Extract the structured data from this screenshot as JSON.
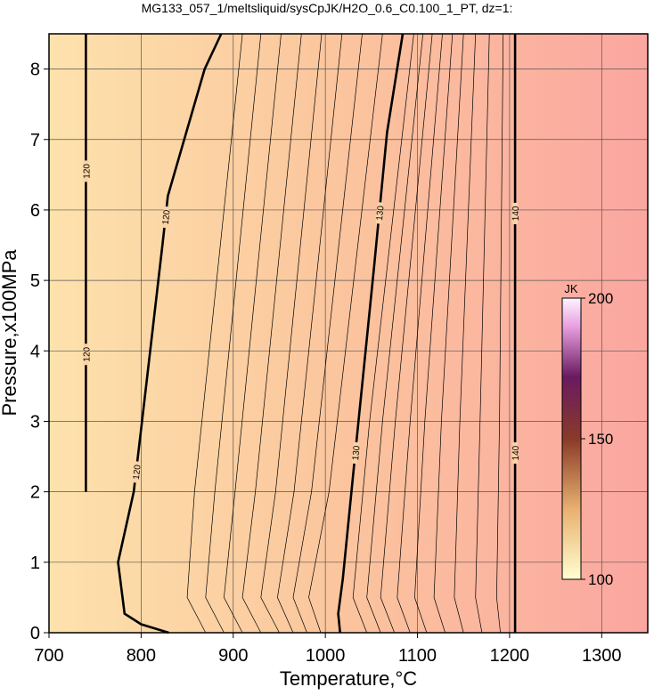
{
  "chart_data": {
    "type": "contour",
    "title": "MG133_057_1/meltsliquid/sysCpJK/H2O_0.6_C0.100_1_PT, dz=1:",
    "xlabel": "Temperature,°C",
    "ylabel": "Pressure,x100MPa",
    "xlim": [
      700,
      1350
    ],
    "ylim": [
      0,
      8.5
    ],
    "xticks": [
      700,
      800,
      900,
      1000,
      1100,
      1200,
      1300
    ],
    "yticks": [
      0,
      1,
      2,
      3,
      4,
      5,
      6,
      7,
      8
    ],
    "grid": true,
    "colorbar": {
      "label": "JK",
      "lim": [
        100,
        200
      ],
      "ticks": [
        100,
        150,
        200
      ]
    },
    "contours": [
      {
        "level": 120,
        "labeled": true,
        "x": [
          830,
          800,
          782,
          775,
          792,
          801,
          823,
          829,
          869,
          887
        ],
        "y": [
          0,
          0.12,
          0.27,
          1,
          2,
          3,
          5.49,
          6.2,
          8,
          8.5
        ]
      },
      {
        "level": 120,
        "labeled": true,
        "x": [
          740,
          740
        ],
        "y": [
          2,
          8.5
        ]
      },
      {
        "level": 130,
        "labeled": true,
        "x": [
          1016,
          1014,
          1019,
          1032,
          1053,
          1067,
          1084
        ],
        "y": [
          0,
          0.27,
          0.77,
          2.48,
          5.2,
          7.1,
          8.5
        ]
      },
      {
        "level": 140,
        "labeled": true,
        "x": [
          1206,
          1206
        ],
        "y": [
          0,
          8.5
        ]
      },
      {
        "level": 121,
        "labeled": false,
        "x": [
          870,
          850,
          858,
          910
        ],
        "y": [
          0,
          0.5,
          2,
          8.5
        ]
      },
      {
        "level": 122,
        "labeled": false,
        "x": [
          890,
          870,
          880,
          930
        ],
        "y": [
          0,
          0.5,
          2,
          8.5
        ]
      },
      {
        "level": 123,
        "labeled": false,
        "x": [
          910,
          890,
          902,
          952
        ],
        "y": [
          0,
          0.5,
          2,
          8.5
        ]
      },
      {
        "level": 124,
        "labeled": false,
        "x": [
          930,
          910,
          924,
          974
        ],
        "y": [
          0,
          0.5,
          2,
          8.5
        ]
      },
      {
        "level": 125,
        "labeled": false,
        "x": [
          950,
          930,
          946,
          996
        ],
        "y": [
          0,
          0.5,
          2,
          8.5
        ]
      },
      {
        "level": 126,
        "labeled": false,
        "x": [
          965,
          948,
          966,
          1018
        ],
        "y": [
          0,
          0.5,
          2,
          8.5
        ]
      },
      {
        "level": 127,
        "labeled": false,
        "x": [
          980,
          965,
          985,
          1040
        ],
        "y": [
          0,
          0.5,
          2,
          8.5
        ]
      },
      {
        "level": 128,
        "labeled": false,
        "x": [
          995,
          982,
          1004,
          1062
        ],
        "y": [
          0,
          0.5,
          2,
          8.5
        ]
      },
      {
        "level": 131,
        "labeled": false,
        "x": [
          1045,
          1030,
          1048,
          1096
        ],
        "y": [
          0,
          0.5,
          3,
          8.5
        ]
      },
      {
        "level": 132,
        "labeled": false,
        "x": [
          1060,
          1045,
          1062,
          1106
        ],
        "y": [
          0,
          0.5,
          3,
          8.5
        ]
      },
      {
        "level": 133,
        "labeled": false,
        "x": [
          1075,
          1060,
          1076,
          1116
        ],
        "y": [
          0,
          0.5,
          3,
          8.5
        ]
      },
      {
        "level": 134,
        "labeled": false,
        "x": [
          1092,
          1078,
          1092,
          1127
        ],
        "y": [
          0,
          0.5,
          3,
          8.5
        ]
      },
      {
        "level": 135,
        "labeled": false,
        "x": [
          1110,
          1097,
          1108,
          1138
        ],
        "y": [
          0,
          0.5,
          3,
          8.5
        ]
      },
      {
        "level": 136,
        "labeled": false,
        "x": [
          1130,
          1118,
          1126,
          1150
        ],
        "y": [
          0,
          0.5,
          3,
          8.5
        ]
      },
      {
        "level": 137,
        "labeled": false,
        "x": [
          1150,
          1140,
          1146,
          1163
        ],
        "y": [
          0,
          0.5,
          3,
          8.5
        ]
      },
      {
        "level": 138,
        "labeled": false,
        "x": [
          1170,
          1163,
          1168,
          1178
        ],
        "y": [
          0,
          0.5,
          3,
          8.5
        ]
      },
      {
        "level": 139,
        "labeled": false,
        "x": [
          1190,
          1186,
          1189,
          1193
        ],
        "y": [
          0,
          0.5,
          3,
          8.5
        ]
      }
    ]
  }
}
